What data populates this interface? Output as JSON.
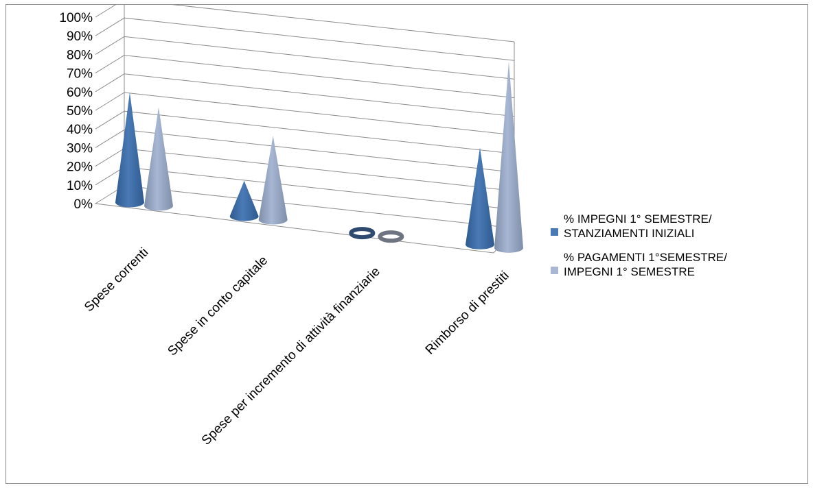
{
  "chart_data": {
    "type": "bar",
    "style": "3d-cone",
    "title": "",
    "xlabel": "",
    "ylabel": "",
    "ylim": [
      0,
      100
    ],
    "y_ticks": [
      "0%",
      "10%",
      "20%",
      "30%",
      "40%",
      "50%",
      "60%",
      "70%",
      "80%",
      "90%",
      "100%"
    ],
    "categories": [
      "Spese correnti",
      "Spese in conto capitale",
      "Spese per incremento di attività finanziarie",
      "Rimborso di prestiti"
    ],
    "series": [
      {
        "name": "% IMPEGNI 1° SEMESTRE/ STANZIAMENTI INIZIALI",
        "legend_lines": [
          "% IMPEGNI 1° SEMESTRE/",
          "STANZIAMENTI INIZIALI"
        ],
        "color": "#4a7ab5",
        "values": [
          59,
          19,
          0,
          52
        ]
      },
      {
        "name": "% PAGAMENTI 1°SEMESTRE/ IMPEGNI 1° SEMESTRE",
        "legend_lines": [
          "% PAGAMENTI 1°SEMESTRE/",
          "IMPEGNI 1° SEMESTRE"
        ],
        "color": "#a7b7d4",
        "values": [
          53,
          45,
          0,
          100
        ]
      }
    ],
    "grid": true,
    "legend_position": "right"
  }
}
